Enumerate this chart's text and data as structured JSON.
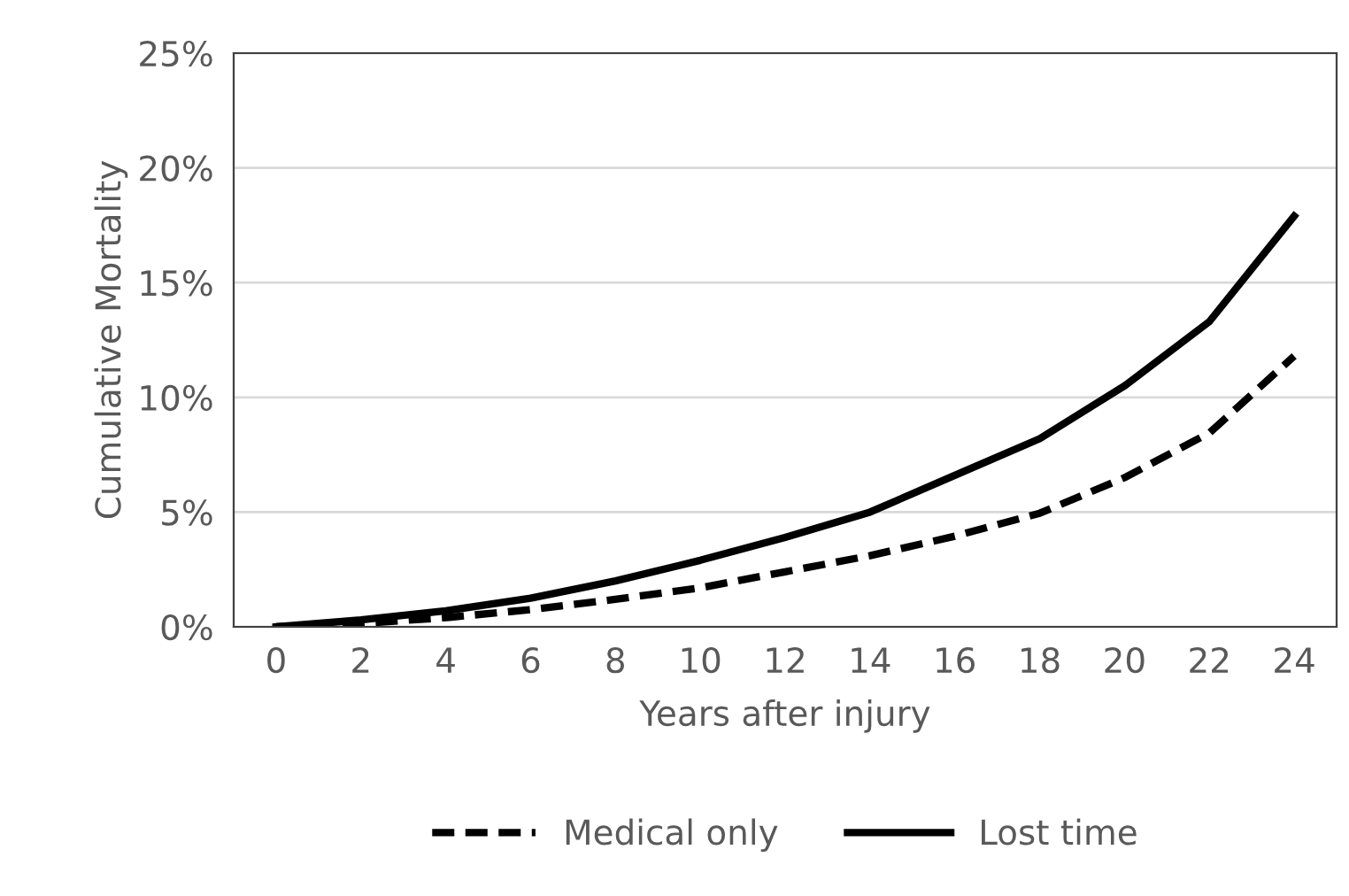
{
  "chart_data": {
    "type": "line",
    "xlabel": "Years after injury",
    "ylabel": "Cumulative Mortality",
    "x": [
      0,
      2,
      4,
      6,
      8,
      10,
      12,
      14,
      16,
      18,
      20,
      22,
      24
    ],
    "series": [
      {
        "name": "Medical only",
        "color": "#000000",
        "line_style": "dashed",
        "values": [
          0,
          0.15,
          0.4,
          0.75,
          1.2,
          1.7,
          2.4,
          3.1,
          3.95,
          4.95,
          6.5,
          8.45,
          11.8
        ]
      },
      {
        "name": "Lost time",
        "color": "#000000",
        "line_style": "solid",
        "values": [
          0,
          0.3,
          0.7,
          1.25,
          2.0,
          2.9,
          3.9,
          5.0,
          6.6,
          8.2,
          10.5,
          13.3,
          17.9
        ]
      }
    ],
    "xlim": [
      -1,
      25
    ],
    "xticks": [
      0,
      2,
      4,
      6,
      8,
      10,
      12,
      14,
      16,
      18,
      20,
      22,
      24
    ],
    "ylim": [
      0,
      25
    ],
    "yticks": [
      {
        "value": 0,
        "label": "0%"
      },
      {
        "value": 5,
        "label": "5%"
      },
      {
        "value": 10,
        "label": "10%"
      },
      {
        "value": 15,
        "label": "15%"
      },
      {
        "value": 20,
        "label": "20%"
      },
      {
        "value": 25,
        "label": "25%"
      }
    ],
    "grid": "y",
    "legend": "bottom",
    "marker": "none"
  }
}
